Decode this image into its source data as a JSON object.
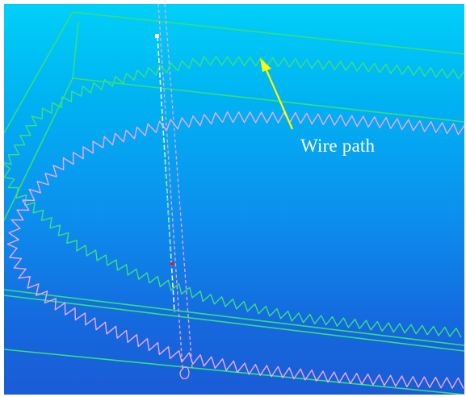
{
  "annotation": {
    "label": "Wire path",
    "color": "#ffff00"
  },
  "colors": {
    "box_edges": "#33e07a",
    "outer_wire": "#3be07e",
    "inner_wire": "#f0a6e6",
    "probe_line": "#f2f2f2",
    "guide_lines": "#f2a2e0",
    "marker": "#e81414"
  }
}
